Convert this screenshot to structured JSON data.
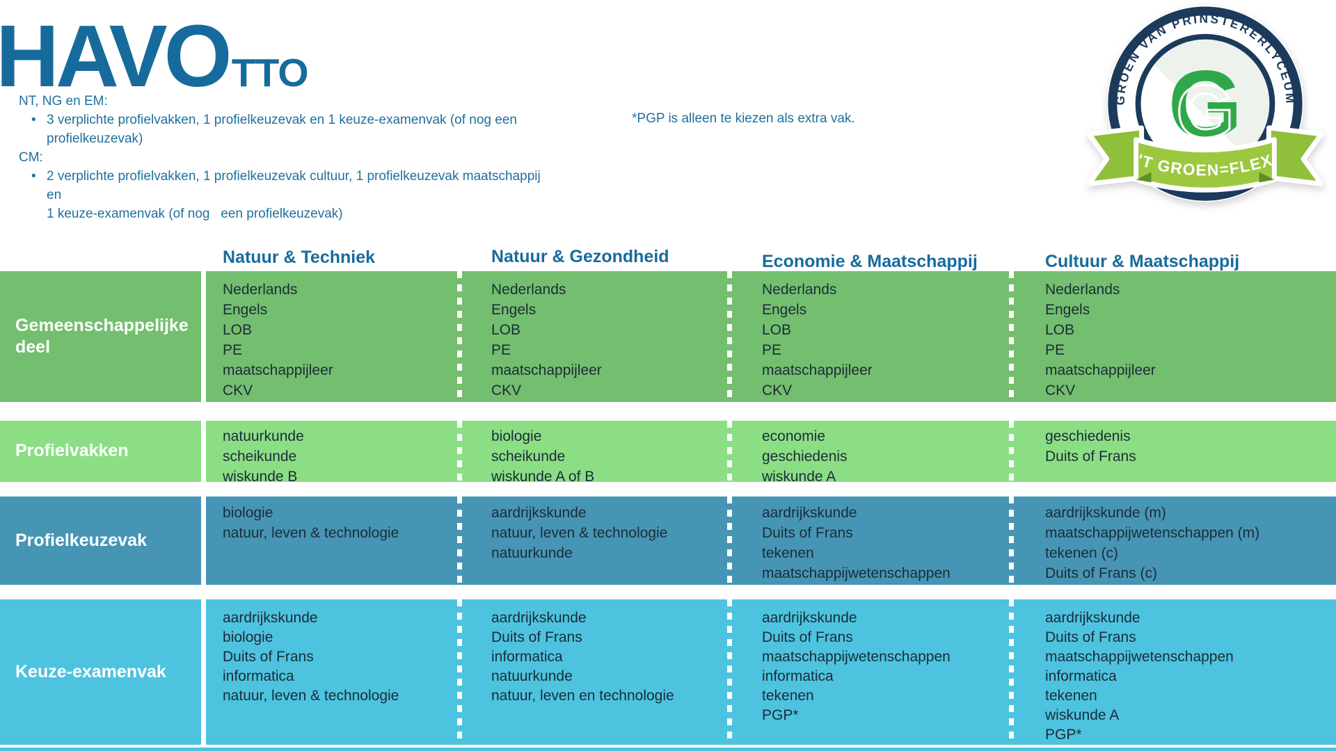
{
  "page": {
    "title_main": "HAVO",
    "title_sub": "TTO"
  },
  "notes": {
    "group1_heading": "NT, NG en EM:",
    "group1_bullet": "3 verplichte profielvakken, 1 profielkeuzevak en 1 keuze-examenvak (of nog een\nprofielkeuzevak)",
    "group2_heading": "CM:",
    "group2_bullet": "2 verplichte profielvakken, 1 profielkeuzevak cultuur, 1 profielkeuzevak maatschappij en\n1 keuze-examenvak (of nog   een profielkeuzevak)",
    "bullet_glyph": "•",
    "pgp_note": "*PGP is alleen te kiezen als extra vak."
  },
  "logo": {
    "arc_text": "GROEN VAN PRINSTERERLYCEUM",
    "monogram": "G",
    "ribbon_text": "'T GROEN=FLEX"
  },
  "table": {
    "profiles": [
      "Natuur & Techniek",
      "Natuur & Gezondheid",
      "Economie & Maatschappij",
      "Cultuur & Maatschappij"
    ],
    "rows": [
      {
        "label": "Gemeenschappelijke deel",
        "color": "#74BE6F",
        "cells": [
          [
            "Nederlands",
            "Engels",
            "LOB",
            "PE",
            "maatschappijleer",
            "CKV"
          ],
          [
            "Nederlands",
            "Engels",
            "LOB",
            "PE",
            "maatschappijleer",
            "CKV"
          ],
          [
            "Nederlands",
            "Engels",
            "LOB",
            "PE",
            "maatschappijleer",
            "CKV"
          ],
          [
            "Nederlands",
            "Engels",
            "LOB",
            "PE",
            "maatschappijleer",
            "CKV"
          ]
        ]
      },
      {
        "label": "Profielvakken",
        "color": "#8CDE85",
        "cells": [
          [
            "natuurkunde",
            "scheikunde",
            "wiskunde B"
          ],
          [
            "biologie",
            "scheikunde",
            "wiskunde A of B"
          ],
          [
            "economie",
            "geschiedenis",
            "wiskunde A"
          ],
          [
            "geschiedenis",
            "Duits of Frans"
          ]
        ]
      },
      {
        "label": "Profielkeuzevak",
        "color": "#4795B5",
        "cells": [
          [
            "biologie",
            "natuur, leven & technologie"
          ],
          [
            "aardrijkskunde",
            "natuur, leven & technologie",
            "natuurkunde"
          ],
          [
            "aardrijkskunde",
            "Duits of Frans",
            "tekenen",
            "maatschappijwetenschappen"
          ],
          [
            "aardrijkskunde (m)",
            "maatschappijwetenschappen (m)",
            "tekenen (c)",
            "Duits of Frans (c)"
          ]
        ]
      },
      {
        "label": "Keuze-examenvak",
        "color": "#4DC3DF",
        "cells": [
          [
            "aardrijkskunde",
            "biologie",
            "Duits of Frans",
            "informatica",
            "natuur, leven & technologie"
          ],
          [
            "aardrijkskunde",
            "Duits of Frans",
            "informatica",
            "natuurkunde",
            "natuur, leven en technologie"
          ],
          [
            "aardrijkskunde",
            "Duits of Frans",
            "maatschappijwetenschappen",
            "informatica",
            "tekenen",
            "PGP*"
          ],
          [
            "aardrijkskunde",
            "Duits of Frans",
            "maatschappijwetenschappen",
            "informatica",
            "tekenen",
            "wiskunde A",
            "PGP*"
          ]
        ]
      }
    ]
  },
  "colors": {
    "accent_teal": "#176B9C",
    "row_gemeenschappelijk": "#74BE6F",
    "row_profielvakken": "#8CDE85",
    "row_profielkeuzevak": "#4795B5",
    "row_keuze_examenvak": "#4DC3DF",
    "body_text": "#1B2C38",
    "label_text": "#FFFFFF",
    "logo_navy": "#1C3A5C",
    "logo_green": "#2FA84A",
    "logo_stripe_green": "#43B049",
    "logo_ribbon_green": "#9CC83F"
  }
}
